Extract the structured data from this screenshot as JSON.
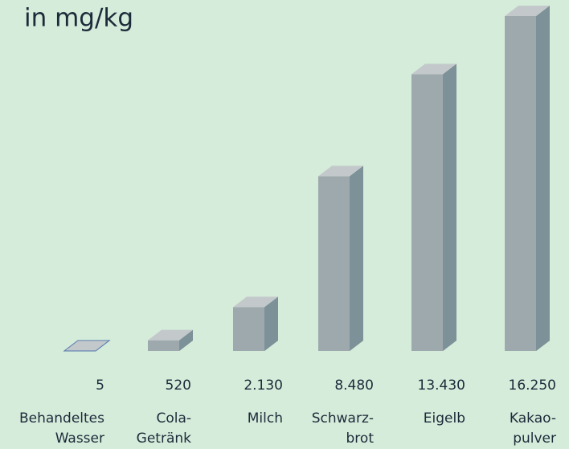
{
  "chart_data": {
    "type": "bar3d",
    "title": "in mg/kg",
    "categories": [
      [
        "Behandeltes",
        "Wasser"
      ],
      [
        "Cola-",
        "Getränk"
      ],
      [
        "Milch"
      ],
      [
        "Schwarz-",
        "brot"
      ],
      [
        "Eigelb"
      ],
      [
        "Kakao-",
        "pulver"
      ]
    ],
    "values": [
      5,
      520,
      2130,
      8480,
      13430,
      16250
    ],
    "value_labels": [
      "5",
      "520",
      "2.130",
      "8.480",
      "13.430",
      "16.250"
    ],
    "color": "#9ea9ad"
  }
}
